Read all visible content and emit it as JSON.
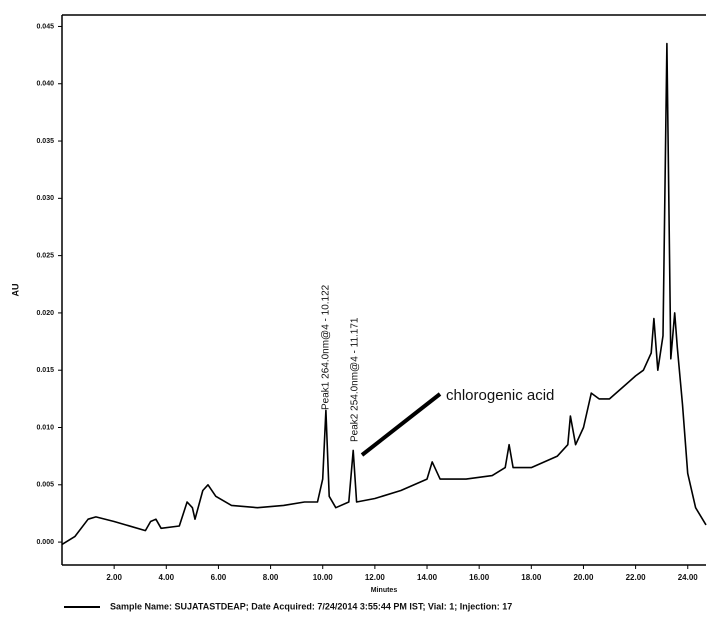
{
  "chart_data": {
    "type": "line",
    "y_label": "AU",
    "x_label": "Minutes",
    "annotations": [
      "Peak1 264.0nm@4 - 10.122",
      "Peak2 254.0nm@4 - 11.171",
      "chlorogenic acid"
    ],
    "xlim": [
      0,
      24.7
    ],
    "ylim": [
      -0.002,
      0.046
    ],
    "xticks": [
      {
        "value": 2,
        "label": "2.00"
      },
      {
        "value": 4,
        "label": "4.00"
      },
      {
        "value": 6,
        "label": "6.00"
      },
      {
        "value": 8,
        "label": "8.00"
      },
      {
        "value": 10,
        "label": "10.00"
      },
      {
        "value": 12,
        "label": "12.00"
      },
      {
        "value": 14,
        "label": "14.00"
      },
      {
        "value": 16,
        "label": "16.00"
      },
      {
        "value": 18,
        "label": "18.00"
      },
      {
        "value": 20,
        "label": "20.00"
      },
      {
        "value": 22,
        "label": "22.00"
      },
      {
        "value": 24,
        "label": "24.00"
      }
    ],
    "yticks": [
      {
        "value": 0,
        "label": "0.000"
      },
      0.005,
      {
        "value": 0.01,
        "label": "0.010"
      },
      0.015,
      {
        "value": 0.02,
        "label": "0.020"
      },
      0.025,
      {
        "value": 0.03,
        "label": "0.030"
      },
      0.035,
      {
        "value": 0.04,
        "label": "0.040"
      },
      0.045
    ],
    "x": [
      0.0,
      0.5,
      1.0,
      1.3,
      2.0,
      3.2,
      3.4,
      3.6,
      3.8,
      4.5,
      4.8,
      5.0,
      5.1,
      5.4,
      5.6,
      5.9,
      6.5,
      7.5,
      8.5,
      9.3,
      9.8,
      10.0,
      10.12,
      10.25,
      10.5,
      11.0,
      11.17,
      11.3,
      12.0,
      13.0,
      14.0,
      14.2,
      14.5,
      15.5,
      16.5,
      17.0,
      17.15,
      17.3,
      18.0,
      19.0,
      19.4,
      19.5,
      19.7,
      20.0,
      20.3,
      20.6,
      21.0,
      21.5,
      22.0,
      22.3,
      22.6,
      22.7,
      22.85,
      23.05,
      23.2,
      23.35,
      23.5,
      23.6,
      23.8,
      24.0,
      24.3,
      24.7
    ],
    "series": [
      {
        "name": "Sample Name: SUJATASTDEAP;   Date Acquired: 7/24/2014 3:55:44 PM IST;   Vial: 1; Injection: 17",
        "color": "#000000",
        "values": [
          -0.0002,
          0.0005,
          0.002,
          0.0022,
          0.0018,
          0.001,
          0.0018,
          0.002,
          0.0012,
          0.0014,
          0.0035,
          0.003,
          0.002,
          0.0045,
          0.005,
          0.004,
          0.0032,
          0.003,
          0.0032,
          0.0035,
          0.0035,
          0.0055,
          0.0115,
          0.004,
          0.003,
          0.0035,
          0.008,
          0.0035,
          0.0038,
          0.0045,
          0.0055,
          0.007,
          0.0055,
          0.0055,
          0.0058,
          0.0065,
          0.0085,
          0.0065,
          0.0065,
          0.0075,
          0.0085,
          0.011,
          0.0085,
          0.01,
          0.013,
          0.0125,
          0.0125,
          0.0135,
          0.0145,
          0.015,
          0.0165,
          0.0195,
          0.015,
          0.018,
          0.0435,
          0.016,
          0.02,
          0.017,
          0.012,
          0.006,
          0.003,
          0.0015
        ]
      }
    ]
  }
}
